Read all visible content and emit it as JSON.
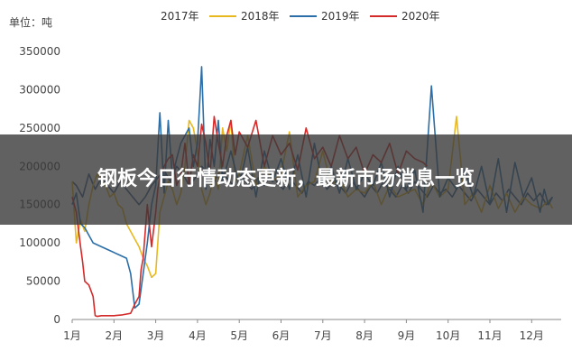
{
  "headline": "钢板今日行情动态更新，最新市场消息一览",
  "chart_data": {
    "type": "line",
    "unit_label": "单位：吨",
    "xlabel": "",
    "ylabel": "",
    "x_ticks": [
      "1月",
      "2月",
      "3月",
      "4月",
      "5月",
      "6月",
      "7月",
      "8月",
      "9月",
      "10月",
      "11月",
      "12月"
    ],
    "y_ticks": [
      "0",
      "50000",
      "100000",
      "150000",
      "200000",
      "250000",
      "300000",
      "350000"
    ],
    "ylim": [
      0,
      370000
    ],
    "xlim": [
      1,
      12.5
    ],
    "grid": false,
    "legend_position": "top",
    "series": [
      {
        "name": "2017年",
        "color": "#3a5f8f",
        "x": [
          1.0,
          1.1,
          1.25,
          1.4,
          1.55,
          1.7,
          1.85,
          2.0,
          2.15,
          2.3,
          2.45,
          2.6,
          2.75,
          2.9,
          3.05,
          3.2,
          3.35,
          3.5,
          3.65,
          3.8,
          3.95,
          4.1,
          4.25,
          4.4,
          4.55,
          4.7,
          4.85,
          5.0,
          5.15,
          5.3,
          5.45,
          5.6,
          5.75,
          5.9,
          6.05,
          6.2,
          6.35,
          6.5,
          6.65,
          6.8,
          6.95,
          7.1,
          7.25,
          7.4,
          7.55,
          7.7,
          7.85,
          8.0,
          8.15,
          8.3,
          8.45,
          8.6,
          8.75,
          8.9,
          9.05,
          9.2,
          9.35,
          9.5,
          9.65,
          9.8,
          9.95,
          10.1,
          10.25,
          10.4,
          10.55,
          10.7,
          10.85,
          11.0,
          11.15,
          11.3,
          11.45,
          11.6,
          11.75,
          11.9,
          12.05,
          12.2,
          12.35,
          12.5
        ],
        "y": [
          180000,
          175000,
          160000,
          190000,
          170000,
          185000,
          175000,
          165000,
          180000,
          170000,
          160000,
          150000,
          160000,
          175000,
          185000,
          195000,
          180000,
          200000,
          190000,
          175000,
          185000,
          200000,
          190000,
          180000,
          195000,
          185000,
          175000,
          190000,
          180000,
          170000,
          185000,
          175000,
          190000,
          180000,
          170000,
          185000,
          175000,
          165000,
          180000,
          175000,
          185000,
          170000,
          180000,
          175000,
          165000,
          180000,
          170000,
          160000,
          175000,
          165000,
          180000,
          170000,
          160000,
          175000,
          165000,
          180000,
          170000,
          160000,
          175000,
          165000,
          170000,
          160000,
          175000,
          165000,
          155000,
          170000,
          160000,
          150000,
          165000,
          155000,
          170000,
          160000,
          150000,
          165000,
          155000,
          165000,
          150000,
          160000
        ]
      },
      {
        "name": "2018年",
        "color": "#e8b820",
        "x": [
          1.0,
          1.1,
          1.2,
          1.3,
          1.4,
          1.5,
          1.6,
          1.7,
          1.8,
          1.9,
          2.0,
          2.1,
          2.2,
          2.3,
          2.4,
          2.5,
          2.6,
          2.7,
          2.8,
          2.9,
          3.0,
          3.1,
          3.2,
          3.3,
          3.4,
          3.5,
          3.6,
          3.7,
          3.8,
          3.9,
          4.0,
          4.1,
          4.2,
          4.3,
          4.4,
          4.5,
          4.6,
          4.7,
          4.8,
          4.9,
          5.0,
          5.2,
          5.4,
          5.6,
          5.8,
          6.0,
          6.2,
          6.4,
          6.6,
          6.8,
          7.0,
          7.2,
          7.4,
          7.6,
          7.8,
          8.0,
          8.2,
          8.4,
          8.6,
          8.8,
          9.0,
          9.2,
          9.4,
          9.6,
          9.8,
          10.0,
          10.2,
          10.4,
          10.6,
          10.8,
          11.0,
          11.2,
          11.4,
          11.6,
          11.8,
          12.0,
          12.2,
          12.4,
          12.5
        ],
        "y": [
          180000,
          100000,
          130000,
          115000,
          150000,
          175000,
          190000,
          180000,
          175000,
          160000,
          165000,
          150000,
          145000,
          125000,
          115000,
          105000,
          95000,
          80000,
          70000,
          55000,
          60000,
          140000,
          160000,
          180000,
          170000,
          150000,
          165000,
          200000,
          260000,
          250000,
          220000,
          170000,
          150000,
          165000,
          190000,
          170000,
          250000,
          220000,
          260000,
          180000,
          190000,
          240000,
          175000,
          200000,
          180000,
          190000,
          245000,
          160000,
          175000,
          180000,
          220000,
          175000,
          185000,
          160000,
          170000,
          165000,
          180000,
          150000,
          175000,
          160000,
          165000,
          170000,
          150000,
          180000,
          160000,
          170000,
          265000,
          150000,
          165000,
          140000,
          175000,
          145000,
          165000,
          140000,
          160000,
          150000,
          145000,
          155000,
          145000
        ]
      },
      {
        "name": "2019年",
        "color": "#2c6fa8",
        "x": [
          1.0,
          1.1,
          1.2,
          1.3,
          1.4,
          1.5,
          1.7,
          1.9,
          2.1,
          2.3,
          2.4,
          2.5,
          2.6,
          2.7,
          2.8,
          2.9,
          3.0,
          3.1,
          3.2,
          3.3,
          3.4,
          3.5,
          3.6,
          3.7,
          3.8,
          3.9,
          4.0,
          4.1,
          4.2,
          4.3,
          4.4,
          4.5,
          4.6,
          4.8,
          5.0,
          5.2,
          5.4,
          5.6,
          5.8,
          6.0,
          6.2,
          6.4,
          6.6,
          6.8,
          7.0,
          7.2,
          7.4,
          7.6,
          7.8,
          8.0,
          8.2,
          8.4,
          8.6,
          8.8,
          9.0,
          9.2,
          9.4,
          9.6,
          9.8,
          10.0,
          10.2,
          10.4,
          10.6,
          10.8,
          11.0,
          11.2,
          11.4,
          11.6,
          11.8,
          12.0,
          12.2,
          12.3,
          12.4,
          12.5
        ],
        "y": [
          150000,
          165000,
          125000,
          120000,
          110000,
          100000,
          95000,
          90000,
          85000,
          80000,
          60000,
          15000,
          20000,
          60000,
          100000,
          150000,
          175000,
          270000,
          165000,
          260000,
          185000,
          210000,
          230000,
          240000,
          250000,
          200000,
          230000,
          330000,
          170000,
          235000,
          200000,
          260000,
          180000,
          220000,
          175000,
          225000,
          160000,
          220000,
          180000,
          210000,
          170000,
          215000,
          160000,
          230000,
          175000,
          200000,
          165000,
          210000,
          170000,
          190000,
          175000,
          205000,
          160000,
          200000,
          170000,
          195000,
          140000,
          305000,
          160000,
          185000,
          170000,
          195000,
          160000,
          200000,
          150000,
          210000,
          140000,
          205000,
          160000,
          185000,
          140000,
          170000,
          150000,
          160000
        ]
      },
      {
        "name": "2020年",
        "color": "#d42a2a",
        "x": [
          1.0,
          1.1,
          1.2,
          1.25,
          1.3,
          1.4,
          1.5,
          1.55,
          1.6,
          1.7,
          1.8,
          2.0,
          2.2,
          2.4,
          2.5,
          2.6,
          2.65,
          2.7,
          2.8,
          2.9,
          3.0,
          3.05,
          3.1,
          3.2,
          3.3,
          3.4,
          3.5,
          3.6,
          3.7,
          3.8,
          3.9,
          4.0,
          4.1,
          4.2,
          4.3,
          4.4,
          4.5,
          4.6,
          4.7,
          4.8,
          4.9,
          5.0,
          5.2,
          5.4,
          5.6,
          5.8,
          6.0,
          6.2,
          6.4,
          6.6,
          6.8,
          7.0,
          7.2,
          7.4,
          7.6,
          7.8,
          8.0,
          8.2,
          8.4,
          8.6,
          8.8,
          9.0,
          9.2,
          9.4,
          9.5
        ],
        "y": [
          160000,
          140000,
          95000,
          75000,
          50000,
          45000,
          30000,
          5000,
          4000,
          5000,
          5000,
          5000,
          6000,
          8000,
          20000,
          30000,
          65000,
          80000,
          150000,
          95000,
          140000,
          170000,
          185000,
          200000,
          210000,
          215000,
          175000,
          190000,
          230000,
          175000,
          215000,
          200000,
          255000,
          230000,
          190000,
          265000,
          230000,
          200000,
          240000,
          260000,
          215000,
          245000,
          225000,
          260000,
          200000,
          240000,
          215000,
          230000,
          195000,
          250000,
          210000,
          225000,
          200000,
          240000,
          210000,
          225000,
          190000,
          215000,
          205000,
          230000,
          190000,
          220000,
          210000,
          205000,
          200000
        ]
      }
    ]
  }
}
